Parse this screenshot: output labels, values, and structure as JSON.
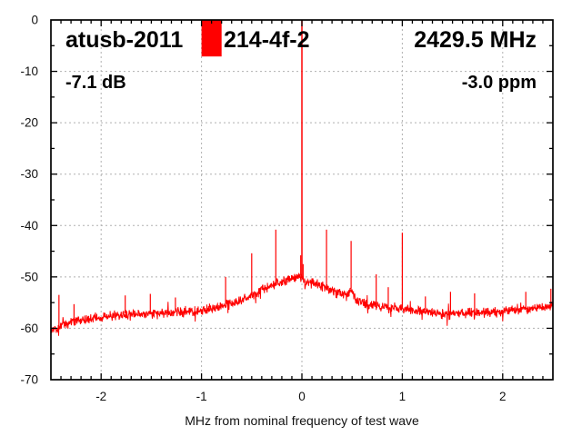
{
  "header": {
    "device_id_left": "atusb-2011",
    "device_id_right": "214-4f-2",
    "frequency": "2429.5 MHz",
    "power_db": "-7.1 dB",
    "ppm": "-3.0 ppm"
  },
  "colors": {
    "trace": "#ff0000",
    "marker": "#ff0000",
    "grid": "#b0b0b0",
    "axis": "#000000",
    "text": "#111111",
    "background": "#ffffff"
  },
  "chart_data": {
    "type": "line",
    "title": "atusb-2011 [marker] 214-4f-2    2429.5 MHz",
    "xlabel": "MHz from nominal frequency of test wave",
    "ylabel": "",
    "xlim": [
      -2.5,
      2.5
    ],
    "ylim": [
      -70,
      0
    ],
    "grid": "dotted",
    "legend": "none",
    "x_ticks": [
      {
        "v": -2,
        "label": "-2"
      },
      {
        "v": -1,
        "label": "-1"
      },
      {
        "v": 0,
        "label": "0"
      },
      {
        "v": 1,
        "label": "1"
      },
      {
        "v": 2,
        "label": "2"
      }
    ],
    "y_ticks": [
      {
        "v": 0,
        "label": "0"
      },
      {
        "v": -10,
        "label": "-10"
      },
      {
        "v": -20,
        "label": "-20"
      },
      {
        "v": -30,
        "label": "-30"
      },
      {
        "v": -40,
        "label": "-40"
      },
      {
        "v": -50,
        "label": "-50"
      },
      {
        "v": -60,
        "label": "-60"
      },
      {
        "v": -70,
        "label": "-70"
      }
    ],
    "x_minor_step": 0.1,
    "y_minor_step": 5,
    "samples": 1500,
    "noise_amplitude_db": 1.1,
    "noise_floor_db": [
      [
        -2.5,
        -60.6
      ],
      [
        -2.4,
        -59.6
      ],
      [
        -2.3,
        -58.9
      ],
      [
        -2.2,
        -58.4
      ],
      [
        -2.0,
        -57.9
      ],
      [
        -1.8,
        -57.4
      ],
      [
        -1.6,
        -57.2
      ],
      [
        -1.4,
        -57.0
      ],
      [
        -1.2,
        -56.8
      ],
      [
        -1.0,
        -56.5
      ],
      [
        -0.9,
        -56.2
      ],
      [
        -0.8,
        -55.7
      ],
      [
        -0.7,
        -55.2
      ],
      [
        -0.6,
        -54.4
      ],
      [
        -0.5,
        -53.5
      ],
      [
        -0.4,
        -52.5
      ],
      [
        -0.3,
        -51.7
      ],
      [
        -0.2,
        -50.9
      ],
      [
        -0.1,
        -50.4
      ],
      [
        -0.04,
        -50.0
      ],
      [
        0.0,
        -50.1
      ],
      [
        0.03,
        -51.4
      ],
      [
        0.08,
        -50.8
      ],
      [
        0.15,
        -51.3
      ],
      [
        0.25,
        -52.2
      ],
      [
        0.35,
        -53.2
      ],
      [
        0.44,
        -53.4
      ],
      [
        0.49,
        -52.6
      ],
      [
        0.55,
        -54.6
      ],
      [
        0.65,
        -55.3
      ],
      [
        0.8,
        -55.9
      ],
      [
        1.0,
        -56.3
      ],
      [
        1.2,
        -56.6
      ],
      [
        1.4,
        -57.2
      ],
      [
        1.6,
        -57.1
      ],
      [
        1.8,
        -56.9
      ],
      [
        2.0,
        -56.8
      ],
      [
        2.2,
        -56.4
      ],
      [
        2.35,
        -56.0
      ],
      [
        2.5,
        -55.7
      ]
    ],
    "spurs_db": [
      [
        -2.42,
        -53.5
      ],
      [
        -2.27,
        -55.3
      ],
      [
        -1.76,
        -53.6
      ],
      [
        -1.51,
        -53.3
      ],
      [
        -1.26,
        -54.0
      ],
      [
        -0.92,
        -55.2
      ],
      [
        -0.76,
        -50.0
      ],
      [
        -0.5,
        -45.4
      ],
      [
        -0.26,
        -40.8
      ],
      [
        -0.012,
        -45.8
      ],
      [
        0.012,
        -47.5
      ],
      [
        0.245,
        -40.8
      ],
      [
        0.49,
        -43.0
      ],
      [
        0.74,
        -49.5
      ],
      [
        0.86,
        -52.0
      ],
      [
        1.0,
        -41.4
      ],
      [
        1.23,
        -53.8
      ],
      [
        1.48,
        -52.9
      ],
      [
        1.72,
        -53.2
      ],
      [
        2.23,
        -52.9
      ],
      [
        2.48,
        -52.3
      ]
    ],
    "carrier": {
      "x": 0,
      "peak_db": 0
    },
    "marker_bar": {
      "x_start": -1.0,
      "x_end": -0.8,
      "top_db": 0,
      "bottom_db": -7.1
    }
  }
}
